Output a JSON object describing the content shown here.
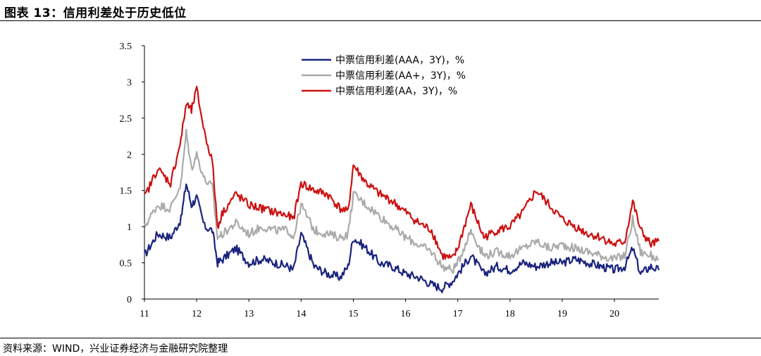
{
  "title": "图表 13：信用利差处于历史低位",
  "source": "资料来源：WIND，兴业证券经济与金融研究院整理",
  "chart_data": {
    "type": "line",
    "title": "图表 13：信用利差处于历史低位",
    "xlabel": "",
    "ylabel": "",
    "ylim": [
      0,
      3.5
    ],
    "yticks": [
      "0",
      "0.5",
      "1",
      "1.5",
      "2",
      "2.5",
      "3",
      "3.5"
    ],
    "xticks": [
      "11",
      "12",
      "13",
      "14",
      "15",
      "16",
      "17",
      "18",
      "19",
      "20"
    ],
    "x_range_years": [
      2011.0,
      2020.85
    ],
    "grid": false,
    "legend_position": "top-center",
    "x": [
      2011.0,
      2011.25,
      2011.5,
      2011.7,
      2011.8,
      2011.9,
      2012.0,
      2012.15,
      2012.3,
      2012.4,
      2012.5,
      2012.75,
      2013.0,
      2013.25,
      2013.5,
      2013.75,
      2013.85,
      2014.0,
      2014.25,
      2014.5,
      2014.75,
      2014.9,
      2015.0,
      2015.25,
      2015.5,
      2015.75,
      2016.0,
      2016.25,
      2016.5,
      2016.7,
      2016.9,
      2017.0,
      2017.25,
      2017.5,
      2017.75,
      2018.0,
      2018.25,
      2018.5,
      2018.75,
      2019.0,
      2019.25,
      2019.5,
      2019.75,
      2020.0,
      2020.2,
      2020.35,
      2020.5,
      2020.7,
      2020.85
    ],
    "series": [
      {
        "name": "中票信用利差(AAA，3Y)，%",
        "color": "#1a237e",
        "values": [
          0.6,
          0.9,
          0.85,
          1.1,
          1.6,
          1.3,
          1.4,
          1.0,
          0.95,
          0.5,
          0.55,
          0.7,
          0.5,
          0.55,
          0.5,
          0.45,
          0.4,
          0.9,
          0.45,
          0.35,
          0.3,
          0.45,
          0.85,
          0.7,
          0.5,
          0.45,
          0.35,
          0.3,
          0.2,
          0.15,
          0.25,
          0.35,
          0.6,
          0.35,
          0.45,
          0.4,
          0.5,
          0.45,
          0.5,
          0.5,
          0.55,
          0.5,
          0.45,
          0.4,
          0.45,
          0.7,
          0.35,
          0.45,
          0.4
        ]
      },
      {
        "name": "中票信用利差(AA+，3Y)，%",
        "color": "#aaaaaa",
        "values": [
          1.0,
          1.3,
          1.25,
          1.6,
          2.3,
          1.8,
          2.0,
          1.65,
          1.55,
          0.85,
          0.9,
          1.05,
          0.9,
          1.0,
          0.95,
          0.95,
          0.85,
          1.3,
          0.95,
          0.9,
          0.85,
          0.9,
          1.45,
          1.3,
          1.15,
          1.0,
          0.85,
          0.75,
          0.65,
          0.45,
          0.4,
          0.5,
          0.95,
          0.6,
          0.65,
          0.6,
          0.7,
          0.8,
          0.7,
          0.75,
          0.7,
          0.65,
          0.6,
          0.55,
          0.6,
          1.1,
          0.65,
          0.6,
          0.55
        ]
      },
      {
        "name": "中票信用利差(AA，3Y)，%",
        "color": "#cc1111",
        "values": [
          1.4,
          1.8,
          1.6,
          2.2,
          2.7,
          2.6,
          2.9,
          2.3,
          1.9,
          1.0,
          1.2,
          1.45,
          1.3,
          1.25,
          1.2,
          1.15,
          1.1,
          1.6,
          1.5,
          1.45,
          1.25,
          1.2,
          1.85,
          1.6,
          1.45,
          1.35,
          1.2,
          1.05,
          0.95,
          0.6,
          0.55,
          0.7,
          1.3,
          0.85,
          0.95,
          1.0,
          1.2,
          1.5,
          1.3,
          1.1,
          1.0,
          0.9,
          0.85,
          0.75,
          0.8,
          1.35,
          0.95,
          0.75,
          0.8
        ]
      }
    ]
  }
}
